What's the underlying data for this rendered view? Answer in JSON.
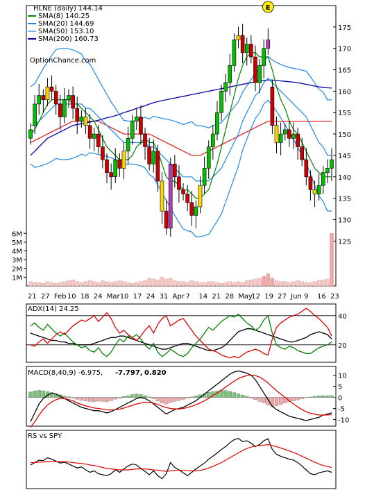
{
  "chart_data": [
    {
      "type": "candlestick",
      "panel": "price",
      "title": "HLNE (daily) 144.14",
      "watermark": "OptionChance.com",
      "legend": [
        {
          "name": "SMA(8) 140.25",
          "color": "#008000"
        },
        {
          "name": "SMA(20) 144.69",
          "color": "#1e88e5"
        },
        {
          "name": "SMA(50) 153.10",
          "color": "#7fb8e8"
        },
        {
          "name": "SMA(200) 160.73",
          "color": "#0000aa"
        }
      ],
      "legend_position": "top-left",
      "earnings_marker": "E",
      "yticks": [
        125,
        130,
        135,
        140,
        145,
        150,
        155,
        160,
        165,
        170,
        175
      ],
      "ylim": [
        121,
        180
      ],
      "xlabels": [
        "21",
        "27",
        "Feb",
        "10",
        "18",
        "24",
        "Mar",
        "10",
        "17",
        "24",
        "31",
        "Apr",
        "7",
        "14",
        "21",
        "28",
        "May",
        "12",
        "19",
        "27",
        "Jun",
        "9",
        "16",
        "23"
      ],
      "close": [
        151,
        157,
        159,
        158,
        161,
        160,
        157,
        154,
        158,
        159,
        156,
        153,
        154,
        152,
        149,
        150,
        147,
        144,
        141,
        140,
        144,
        142,
        146,
        149,
        153,
        154,
        150,
        147,
        143,
        146,
        139,
        132,
        128,
        143,
        140,
        137,
        136,
        134,
        131,
        133,
        138,
        142,
        147,
        150,
        155,
        160,
        162,
        166,
        172,
        173,
        169,
        171,
        168,
        162,
        166,
        170,
        172,
        152,
        148,
        150,
        151,
        149,
        150,
        147,
        144,
        140,
        137,
        136,
        138,
        141,
        142,
        144
      ],
      "open": [
        149,
        152,
        157,
        159,
        158,
        161,
        160,
        157,
        154,
        158,
        159,
        156,
        153,
        154,
        152,
        149,
        150,
        147,
        144,
        141,
        140,
        144,
        142,
        146,
        149,
        153,
        154,
        150,
        147,
        143,
        146,
        139,
        132,
        128,
        143,
        140,
        137,
        136,
        134,
        131,
        133,
        138,
        142,
        147,
        150,
        155,
        160,
        162,
        166,
        172,
        173,
        169,
        171,
        168,
        162,
        166,
        170,
        161,
        152,
        148,
        150,
        151,
        149,
        150,
        147,
        144,
        140,
        137,
        136,
        138,
        141,
        142
      ],
      "sma8": [
        150,
        151,
        153,
        155,
        157,
        158,
        158,
        158,
        158,
        158,
        157,
        157,
        156,
        155,
        154,
        153,
        151,
        149,
        147,
        146,
        145,
        144,
        144,
        144,
        145,
        147,
        148,
        149,
        148,
        148,
        146,
        143,
        140,
        139,
        139,
        138,
        137,
        137,
        136,
        135,
        135,
        136,
        137,
        140,
        143,
        147,
        151,
        155,
        159,
        163,
        166,
        168,
        169,
        169,
        168,
        168,
        168,
        165,
        161,
        158,
        156,
        153,
        151,
        150,
        148,
        146,
        144,
        142,
        141,
        140,
        140,
        140
      ],
      "sma20": [
        152,
        152,
        153,
        154,
        155,
        156,
        157,
        157,
        157,
        157,
        157,
        157,
        157,
        156,
        156,
        155,
        154,
        153,
        152,
        151,
        150,
        149,
        148,
        148,
        148,
        148,
        148,
        148,
        147,
        147,
        146,
        145,
        144,
        143,
        142,
        141,
        140,
        140,
        140,
        139,
        139,
        139,
        139,
        140,
        141,
        142,
        144,
        146,
        148,
        150,
        153,
        155,
        157,
        159,
        160,
        162,
        163,
        162,
        161,
        160,
        159,
        158,
        157,
        156,
        155,
        154,
        152,
        150,
        148,
        147,
        145,
        145
      ],
      "sma50": [
        148,
        148.5,
        149,
        149.5,
        150,
        150.5,
        151,
        151.5,
        152,
        152.5,
        153,
        153,
        153,
        153,
        153,
        153,
        153,
        152.5,
        152,
        151.5,
        151,
        150.5,
        150,
        150,
        150,
        150,
        150,
        150,
        150,
        149.5,
        149,
        148.5,
        148,
        147.5,
        147,
        146.5,
        146,
        145.5,
        145,
        145,
        145,
        145.5,
        146,
        146.5,
        147,
        147.5,
        148,
        148.5,
        149,
        149.5,
        150,
        150.5,
        151,
        151.5,
        152,
        152.5,
        153,
        153,
        153,
        153,
        153,
        153,
        153,
        153,
        153,
        153,
        153,
        153,
        153,
        153,
        153,
        153
      ],
      "sma200": [
        145,
        146,
        147,
        148,
        149,
        149.5,
        150,
        150.5,
        151,
        151.5,
        152,
        152.2,
        152.4,
        152.6,
        152.8,
        153,
        153.2,
        153.5,
        153.8,
        154,
        154.3,
        154.6,
        155,
        155.3,
        155.6,
        156,
        156.3,
        156.6,
        157,
        157.3,
        157.6,
        157.8,
        158,
        158.2,
        158.4,
        158.6,
        158.8,
        159,
        159.2,
        159.4,
        159.6,
        159.8,
        160,
        160.2,
        160.4,
        160.6,
        160.8,
        161,
        161.2,
        161.4,
        161.6,
        161.8,
        162,
        162.2,
        162.4,
        162.5,
        162.6,
        162.6,
        162.5,
        162.4,
        162.3,
        162.2,
        162.1,
        162,
        161.8,
        161.6,
        161.4,
        161.2,
        161,
        160.9,
        160.8,
        160.73
      ]
    },
    {
      "type": "bar",
      "panel": "volume",
      "yticks": [
        "1M",
        "2M",
        "3M",
        "4M",
        "5M",
        "6M"
      ],
      "ylim": [
        0,
        6.5
      ],
      "values": [
        0.5,
        0.4,
        0.4,
        0.3,
        0.5,
        0.4,
        0.3,
        0.4,
        0.5,
        0.6,
        0.7,
        0.5,
        0.4,
        0.5,
        0.6,
        0.5,
        0.4,
        0.6,
        0.5,
        0.4,
        0.5,
        0.6,
        0.5,
        0.4,
        0.3,
        0.4,
        0.5,
        0.6,
        0.9,
        0.8,
        0.7,
        1.0,
        0.8,
        0.9,
        0.6,
        0.5,
        0.5,
        0.4,
        0.6,
        0.5,
        0.4,
        0.4,
        0.5,
        0.5,
        0.4,
        0.3,
        0.4,
        0.5,
        0.4,
        0.5,
        0.4,
        0.6,
        0.7,
        0.8,
        0.9,
        1.1,
        1.4,
        0.9,
        0.6,
        0.5,
        0.5,
        0.4,
        0.5,
        0.6,
        0.5,
        0.4,
        0.4,
        0.5,
        0.6,
        0.7,
        0.8,
        6.0
      ]
    },
    {
      "type": "line",
      "panel": "adx",
      "title": "ADX(14) 24.25",
      "yticks": [
        20,
        40
      ],
      "ylim": [
        8,
        48
      ],
      "series": [
        {
          "name": "ADX",
          "color": "#000000",
          "values": [
            28,
            27,
            26,
            25,
            24,
            23,
            23,
            22,
            22,
            21,
            21,
            20,
            20,
            20,
            20,
            21,
            22,
            23,
            24,
            25,
            25,
            26,
            26,
            25,
            24,
            23,
            22,
            21,
            20,
            19,
            18,
            17,
            17,
            18,
            19,
            20,
            21,
            21,
            20,
            19,
            18,
            17,
            16,
            16,
            17,
            18,
            20,
            23,
            26,
            29,
            30,
            31,
            31,
            30,
            29,
            28,
            27,
            26,
            25,
            24,
            23,
            22,
            22,
            23,
            24,
            25,
            27,
            28,
            29,
            28,
            27,
            24
          ]
        },
        {
          "name": "+DI",
          "color": "#008000",
          "values": [
            33,
            35,
            32,
            30,
            34,
            31,
            28,
            26,
            28,
            25,
            22,
            20,
            18,
            19,
            16,
            15,
            18,
            14,
            12,
            15,
            20,
            24,
            22,
            26,
            25,
            27,
            24,
            20,
            17,
            21,
            15,
            12,
            14,
            17,
            15,
            13,
            12,
            14,
            18,
            21,
            24,
            28,
            32,
            30,
            33,
            36,
            38,
            40,
            39,
            41,
            38,
            35,
            33,
            30,
            32,
            37,
            40,
            28,
            20,
            18,
            17,
            19,
            18,
            16,
            15,
            14,
            14,
            16,
            18,
            19,
            20,
            22
          ]
        },
        {
          "name": "-DI",
          "color": "#dd0000",
          "values": [
            20,
            19,
            22,
            24,
            21,
            24,
            27,
            29,
            27,
            30,
            33,
            35,
            37,
            36,
            38,
            40,
            36,
            39,
            42,
            38,
            32,
            28,
            30,
            27,
            25,
            23,
            26,
            30,
            33,
            28,
            34,
            38,
            40,
            33,
            35,
            37,
            38,
            34,
            30,
            26,
            23,
            20,
            17,
            16,
            15,
            13,
            12,
            11,
            12,
            11,
            13,
            15,
            16,
            17,
            16,
            14,
            13,
            24,
            32,
            35,
            37,
            39,
            40,
            41,
            43,
            45,
            43,
            40,
            38,
            35,
            32,
            26
          ]
        }
      ]
    },
    {
      "type": "bar",
      "panel": "macd",
      "title": "MACD(8,40,9) -6.975,",
      "title_values": [
        "-7.797,",
        "0.820"
      ],
      "title_value_colors": [
        "#dd0000",
        "#1e5fcc"
      ],
      "yticks": [
        -10,
        -5,
        0,
        5,
        10
      ],
      "ylim": [
        -13,
        14
      ],
      "histogram": [
        2.5,
        3,
        3.2,
        3,
        2.6,
        2.2,
        1.6,
        1.2,
        0.6,
        0.3,
        -0.4,
        -0.9,
        -1.3,
        -1.6,
        -1.8,
        -1.9,
        -1.7,
        -1.8,
        -2,
        -1.5,
        -0.8,
        -0.4,
        0.4,
        0.8,
        1.3,
        1.6,
        1.3,
        0.8,
        0.2,
        -0.6,
        -1.6,
        -2.6,
        -3,
        -2.3,
        -1.8,
        -1.4,
        -0.9,
        -0.4,
        0.2,
        0.7,
        1.2,
        1.7,
        2.3,
        2.6,
        2.9,
        3.3,
        3.1,
        2.7,
        2.2,
        1.7,
        1.1,
        0.5,
        -0.3,
        -1,
        -1.8,
        -2.6,
        -3.5,
        -4.2,
        -3.8,
        -3.2,
        -2.6,
        -2,
        -1.6,
        -1.1,
        -0.6,
        -0.2,
        0.2,
        0.5,
        0.7,
        0.8,
        0.8,
        0.82
      ],
      "series": [
        {
          "name": "MACD",
          "color": "#000000",
          "values": [
            -11,
            -7,
            -3,
            -0.5,
            1,
            2,
            1.5,
            0.5,
            -0.5,
            -1.5,
            -2.5,
            -3.5,
            -4.5,
            -5,
            -5.5,
            -6,
            -6,
            -6.5,
            -7,
            -6.5,
            -5.5,
            -4.5,
            -3.5,
            -2.5,
            -1.5,
            -0.5,
            0,
            -0.5,
            -1.5,
            -3,
            -4.5,
            -6,
            -7.5,
            -6.5,
            -5.5,
            -5,
            -4.5,
            -3.5,
            -2.5,
            -1.5,
            0,
            1.5,
            3,
            4.5,
            6,
            7.5,
            9,
            10.5,
            11.5,
            12,
            11.5,
            11,
            10,
            8,
            5,
            2,
            -1,
            -4,
            -5.5,
            -6.5,
            -7.5,
            -8.5,
            -9,
            -9.5,
            -10,
            -10.5,
            -10,
            -9.5,
            -9,
            -8,
            -7.5,
            -6.975
          ]
        },
        {
          "name": "Signal",
          "color": "#dd0000",
          "values": [
            -13.5,
            -11,
            -8,
            -5.5,
            -3.5,
            -2,
            -1,
            -0.5,
            -0.5,
            -1,
            -1.5,
            -2.5,
            -3.2,
            -3.8,
            -4.3,
            -4.8,
            -5,
            -5.3,
            -5.6,
            -5.7,
            -5.6,
            -5.3,
            -4.8,
            -4.2,
            -3.6,
            -3,
            -2.5,
            -2.2,
            -2.2,
            -2.6,
            -3.2,
            -4,
            -4.6,
            -5,
            -5.2,
            -5.2,
            -5,
            -4.6,
            -4,
            -3.3,
            -2.5,
            -1.5,
            -0.4,
            0.8,
            2,
            3.3,
            4.7,
            6,
            7.3,
            8.5,
            9.3,
            9.9,
            10.1,
            9.9,
            9.2,
            8,
            6.5,
            4.8,
            3,
            1.5,
            0,
            -1.5,
            -3,
            -4.3,
            -5.5,
            -6.5,
            -7.2,
            -7.6,
            -7.9,
            -8,
            -7.9,
            -7.797
          ]
        }
      ]
    },
    {
      "type": "line",
      "panel": "relative-strength",
      "title": "RS vs SPY",
      "series": [
        {
          "name": "RS",
          "color": "#000000",
          "values": [
            0.4,
            0.45,
            0.5,
            0.49,
            0.55,
            0.52,
            0.48,
            0.44,
            0.46,
            0.42,
            0.38,
            0.34,
            0.36,
            0.3,
            0.25,
            0.28,
            0.22,
            0.2,
            0.18,
            0.22,
            0.3,
            0.25,
            0.32,
            0.38,
            0.42,
            0.4,
            0.33,
            0.27,
            0.2,
            0.28,
            0.18,
            0.12,
            0.22,
            0.45,
            0.35,
            0.3,
            0.24,
            0.18,
            0.25,
            0.32,
            0.38,
            0.44,
            0.52,
            0.58,
            0.65,
            0.72,
            0.78,
            0.86,
            0.92,
            0.95,
            0.88,
            0.9,
            0.85,
            0.78,
            0.82,
            0.9,
            0.94,
            0.72,
            0.62,
            0.58,
            0.55,
            0.52,
            0.5,
            0.45,
            0.38,
            0.3,
            0.22,
            0.2,
            0.24,
            0.26,
            0.28,
            0.25
          ]
        },
        {
          "name": "RS average",
          "color": "#dd0000",
          "values": [
            0.45,
            0.45,
            0.46,
            0.46,
            0.47,
            0.47,
            0.47,
            0.47,
            0.47,
            0.46,
            0.45,
            0.44,
            0.43,
            0.42,
            0.4,
            0.39,
            0.37,
            0.35,
            0.33,
            0.32,
            0.31,
            0.3,
            0.3,
            0.3,
            0.31,
            0.32,
            0.32,
            0.32,
            0.31,
            0.3,
            0.29,
            0.28,
            0.27,
            0.28,
            0.29,
            0.29,
            0.29,
            0.28,
            0.28,
            0.28,
            0.29,
            0.31,
            0.34,
            0.37,
            0.41,
            0.45,
            0.5,
            0.55,
            0.6,
            0.65,
            0.7,
            0.74,
            0.77,
            0.79,
            0.8,
            0.81,
            0.82,
            0.8,
            0.78,
            0.75,
            0.72,
            0.69,
            0.66,
            0.62,
            0.58,
            0.54,
            0.5,
            0.46,
            0.42,
            0.39,
            0.37,
            0.35
          ]
        }
      ]
    }
  ]
}
